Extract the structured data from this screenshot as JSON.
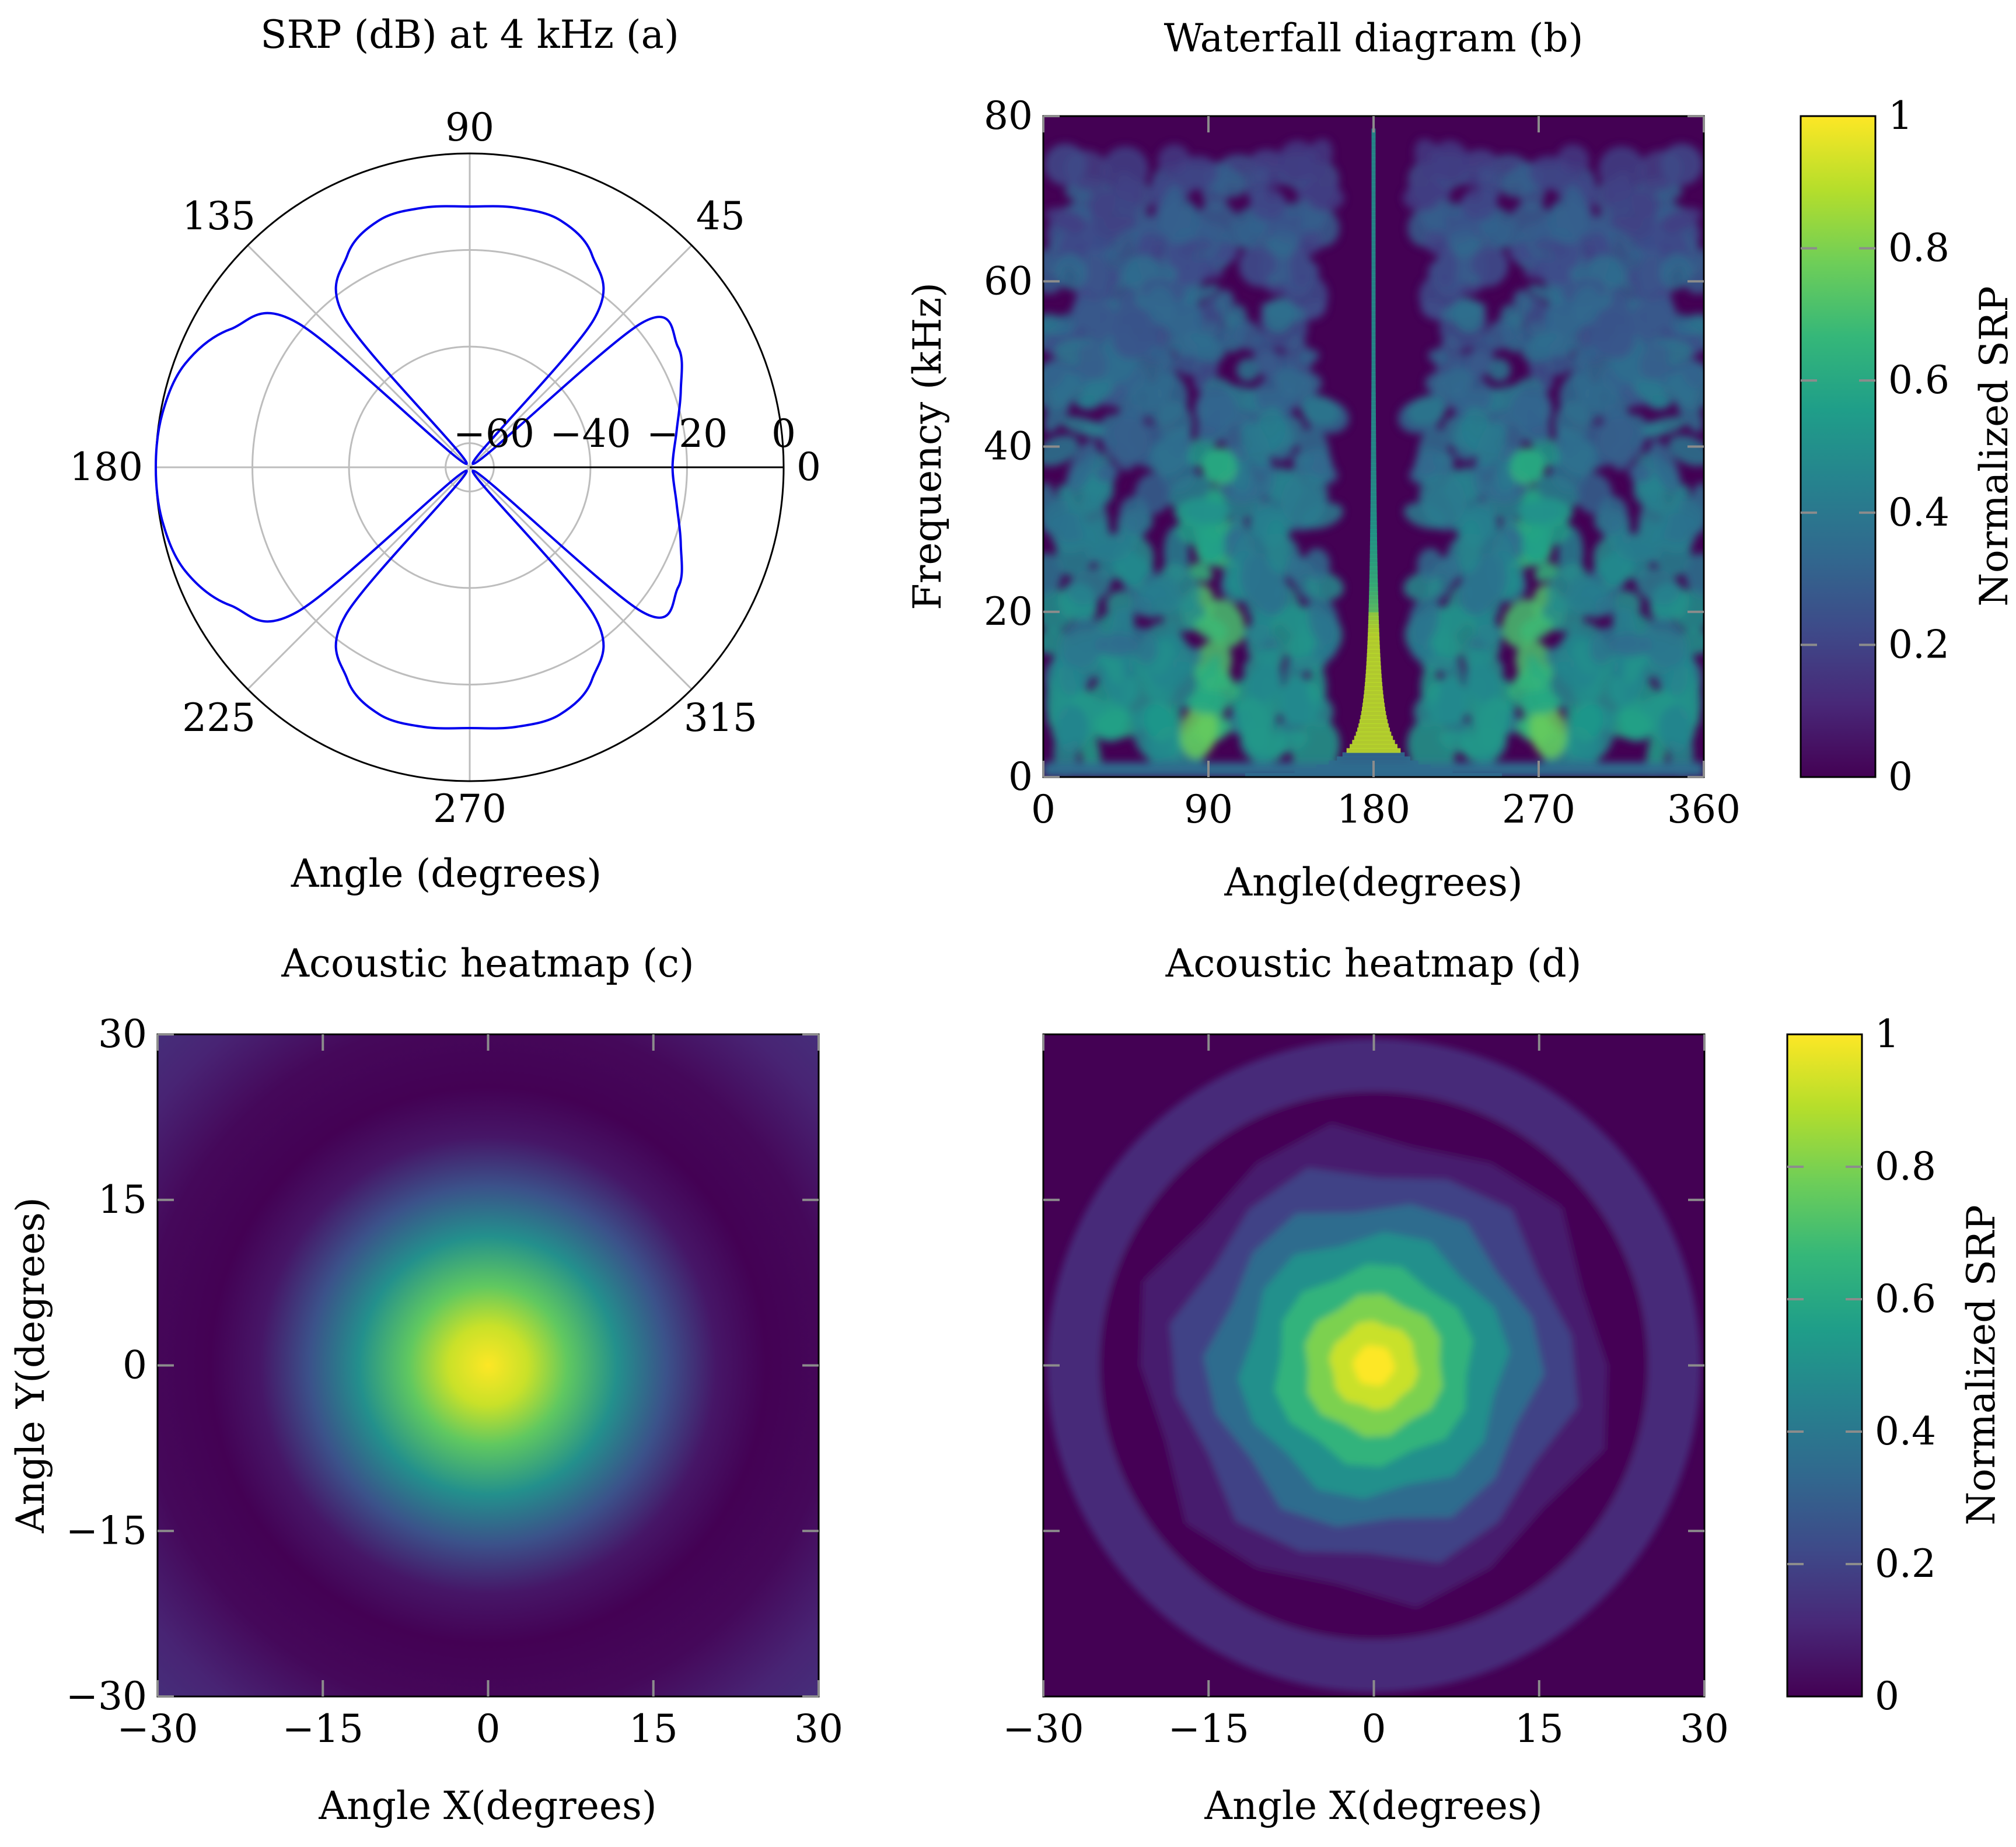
{
  "colors": {
    "polar_line": "#0000ee",
    "grid": "#bdbdbd",
    "tick": "#8c8c8c",
    "viridis": [
      "#440154",
      "#482878",
      "#3e4a89",
      "#31688e",
      "#26828e",
      "#1f9e89",
      "#35b779",
      "#6ece58",
      "#b5de2b",
      "#fde725"
    ]
  },
  "chart_data": [
    {
      "id": "a",
      "type": "polar_line",
      "title": "SRP (dB) at 4 kHz (a)",
      "xlabel": "Angle (degrees)",
      "angle_ticks": [
        "0",
        "45",
        "90",
        "135",
        "180",
        "225",
        "270",
        "315"
      ],
      "angle_tick_values": [
        0,
        45,
        90,
        135,
        180,
        225,
        270,
        315
      ],
      "radial_ticks": [
        "−60",
        "−40",
        "−20",
        "0"
      ],
      "radial_tick_values": [
        -60,
        -40,
        -20,
        0
      ],
      "rlim": [
        -65,
        0
      ],
      "grid": true,
      "series": [
        {
          "angle_deg": [
            0,
            10,
            20,
            30,
            40,
            45,
            50,
            60,
            70,
            80,
            90,
            100,
            110,
            120,
            130,
            135,
            140,
            150,
            160,
            170,
            180,
            190,
            200,
            210,
            220,
            225,
            230,
            240,
            250,
            260,
            270,
            280,
            290,
            300,
            310,
            315,
            320,
            330,
            340,
            350,
            360
          ],
          "srp_db": [
            -23,
            -21.5,
            -18.5,
            -15.2,
            -18.5,
            -64,
            -25,
            -14.3,
            -10.5,
            -10.4,
            -11,
            -10.4,
            -10.5,
            -14.3,
            -25,
            -64,
            -18.5,
            -7.8,
            -2.3,
            -0.4,
            0,
            -0.4,
            -2.3,
            -7.8,
            -18.5,
            -64,
            -25,
            -14.3,
            -10.5,
            -10.4,
            -11,
            -10.4,
            -10.5,
            -14.3,
            -25,
            -64,
            -18.5,
            -15.2,
            -18.5,
            -21.5,
            -23
          ]
        }
      ]
    },
    {
      "id": "b",
      "type": "heatmap",
      "title": "Waterfall diagram (b)",
      "xlabel": "Angle(degrees)",
      "ylabel": "Frequency (kHz)",
      "xlim": [
        0,
        360
      ],
      "ylim": [
        0,
        80
      ],
      "xticks": [
        "0",
        "90",
        "180",
        "270",
        "360"
      ],
      "xtick_values": [
        0,
        90,
        180,
        270,
        360
      ],
      "yticks": [
        "0",
        "20",
        "40",
        "60",
        "80"
      ],
      "ytick_values": [
        0,
        20,
        40,
        60,
        80
      ],
      "peak_angle": 180,
      "colorbar": {
        "label": "Normalized SRP",
        "ticks": [
          "0",
          "0.2",
          "0.4",
          "0.6",
          "0.8",
          "1"
        ],
        "tick_values": [
          0,
          0.2,
          0.4,
          0.6,
          0.8,
          1
        ],
        "range": [
          0,
          1
        ]
      }
    },
    {
      "id": "c",
      "type": "heatmap",
      "title": "Acoustic heatmap (c)",
      "xlabel": "Angle X(degrees)",
      "ylabel": "Angle Y(degrees)",
      "xlim": [
        -30,
        30
      ],
      "ylim": [
        -30,
        30
      ],
      "xticks": [
        "−30",
        "−15",
        "0",
        "15",
        "30"
      ],
      "xtick_values": [
        -30,
        -15,
        0,
        15,
        30
      ],
      "yticks": [
        "−30",
        "−15",
        "0",
        "15",
        "30"
      ],
      "ytick_values": [
        -30,
        -15,
        0,
        15,
        30
      ],
      "peak": [
        0,
        0
      ]
    },
    {
      "id": "d",
      "type": "heatmap",
      "title": "Acoustic heatmap (d)",
      "xlabel": "Angle X(degrees)",
      "xlim": [
        -30,
        30
      ],
      "ylim": [
        -30,
        30
      ],
      "xticks": [
        "−30",
        "−15",
        "0",
        "15",
        "30"
      ],
      "xtick_values": [
        -30,
        -15,
        0,
        15,
        30
      ],
      "ytick_values": [
        -15,
        0,
        15
      ],
      "peak": [
        0,
        0
      ],
      "colorbar": {
        "label": "Normalized SRP",
        "ticks": [
          "0",
          "0.2",
          "0.4",
          "0.6",
          "0.8",
          "1"
        ],
        "tick_values": [
          0,
          0.2,
          0.4,
          0.6,
          0.8,
          1
        ],
        "range": [
          0,
          1
        ]
      }
    }
  ]
}
